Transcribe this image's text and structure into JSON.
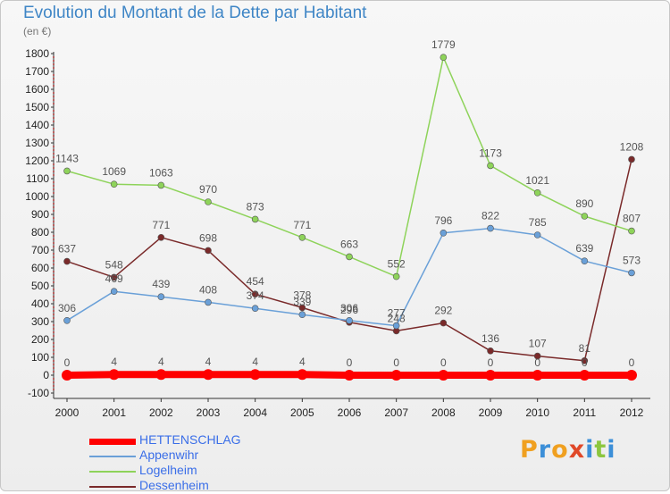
{
  "title": "Evolution du Montant de la Dette par Habitant",
  "subtitle": "(en €)",
  "logo": {
    "text": "Proxiti",
    "letters": [
      {
        "ch": "P",
        "color": "#f0a020"
      },
      {
        "ch": "r",
        "color": "#3c8fd8"
      },
      {
        "ch": "o",
        "color": "#f0a020"
      },
      {
        "ch": "x",
        "color": "#e04828"
      },
      {
        "ch": "i",
        "color": "#3c8fd8"
      },
      {
        "ch": "t",
        "color": "#8cc63f"
      },
      {
        "ch": "i",
        "color": "#3c8fd8"
      }
    ]
  },
  "chart_data": {
    "type": "line",
    "title": "Evolution du Montant de la Dette par Habitant",
    "subtitle": "(en €)",
    "x": [
      "2000",
      "2001",
      "2002",
      "2003",
      "2004",
      "2005",
      "2006",
      "2007",
      "2008",
      "2009",
      "2010",
      "2011",
      "2012"
    ],
    "ylim": [
      -100,
      1800
    ],
    "yticks": [
      -100,
      0,
      100,
      200,
      300,
      400,
      500,
      600,
      700,
      800,
      900,
      1000,
      1100,
      1200,
      1300,
      1400,
      1500,
      1600,
      1700,
      1800
    ],
    "grid": false,
    "legend_position": "bottom-left",
    "series": [
      {
        "name": "HETTENSCHLAG",
        "color": "#ff0000",
        "values": [
          0,
          4,
          4,
          4,
          4,
          4,
          0,
          0,
          0,
          0,
          0,
          0,
          0
        ],
        "labels": [
          "0",
          "4",
          "4",
          "4",
          "4",
          "4",
          "0",
          "0",
          "0",
          "0",
          "0",
          "0",
          "0"
        ]
      },
      {
        "name": "Appenwihr",
        "color": "#6aa0d8",
        "values": [
          306,
          469,
          439,
          408,
          374,
          339,
          306,
          277,
          796,
          822,
          785,
          639,
          573
        ],
        "labels": [
          "306",
          "469",
          "439",
          "408",
          "374",
          "339",
          "306",
          "277",
          "796",
          "822",
          "785",
          "639",
          "573"
        ]
      },
      {
        "name": "Logelheim",
        "color": "#8ed35a",
        "values": [
          1143,
          1069,
          1063,
          970,
          873,
          771,
          663,
          552,
          1779,
          1173,
          1021,
          890,
          807
        ],
        "labels": [
          "1143",
          "1069",
          "1063",
          "970",
          "873",
          "771",
          "663",
          "552",
          "1779",
          "1173",
          "1021",
          "890",
          "807"
        ]
      },
      {
        "name": "Dessenheim",
        "color": "#7a2a2a",
        "values": [
          637,
          548,
          771,
          698,
          454,
          378,
          296,
          248,
          292,
          136,
          107,
          81,
          1208
        ],
        "labels": [
          "637",
          "548",
          "771",
          "698",
          "454",
          "378",
          "296",
          "248",
          "292",
          "136",
          "107",
          "81",
          "1208"
        ]
      }
    ]
  }
}
